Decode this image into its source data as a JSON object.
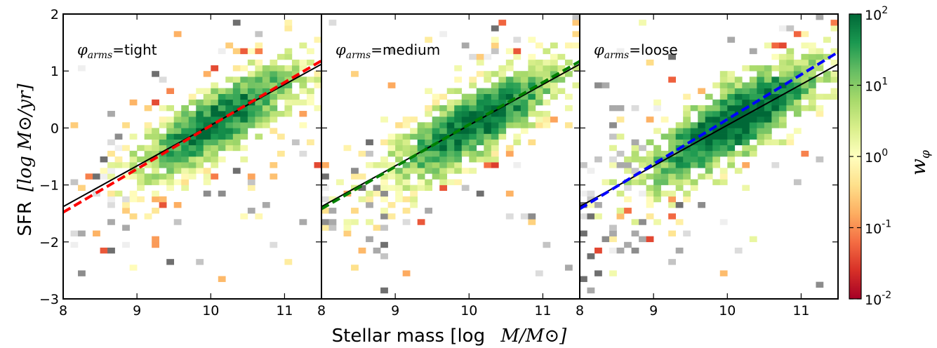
{
  "chart_data": {
    "type": "heatmap",
    "xlabel_prefix": "Stellar mass [log",
    "xlabel_math": "M/M⊙]",
    "ylabel_prefix": "SFR",
    "ylabel_math": "[log M⊙/yr]",
    "xlim": [
      8,
      11.5
    ],
    "ylim": [
      -3,
      2
    ],
    "xticks": [
      "8",
      "9",
      "10",
      "11"
    ],
    "yticks": [
      "2",
      "1",
      "0",
      "−1",
      "−2",
      "−3"
    ],
    "reference_line": {
      "description_color": "#000000",
      "x": [
        8,
        11.5
      ],
      "y": [
        -1.38,
        1.12
      ]
    },
    "panels": [
      {
        "phi_label": "=tight",
        "fit_color": "#ff0000",
        "fit_x": [
          8,
          11.5
        ],
        "fit_y": [
          -1.48,
          1.18
        ]
      },
      {
        "phi_label": "=medium",
        "fit_color": "#008000",
        "fit_x": [
          8,
          11.5
        ],
        "fit_y": [
          -1.42,
          1.17
        ]
      },
      {
        "phi_label": "=loose",
        "fit_color": "#0000ff",
        "fit_x": [
          8,
          11.5
        ],
        "fit_y": [
          -1.42,
          1.33
        ]
      }
    ],
    "phi_symbol": "φ",
    "phi_subscript": "arms",
    "colorbar": {
      "label": "w",
      "label_sub": "φ",
      "scale": "log",
      "range": [
        0.01,
        100
      ],
      "ticks": [
        {
          "base": "10",
          "exp": "2"
        },
        {
          "base": "10",
          "exp": "1"
        },
        {
          "base": "10",
          "exp": "0"
        },
        {
          "base": "10",
          "exp": "-1"
        },
        {
          "base": "10",
          "exp": "-2"
        }
      ],
      "colormap": "RdYlGn"
    }
  }
}
